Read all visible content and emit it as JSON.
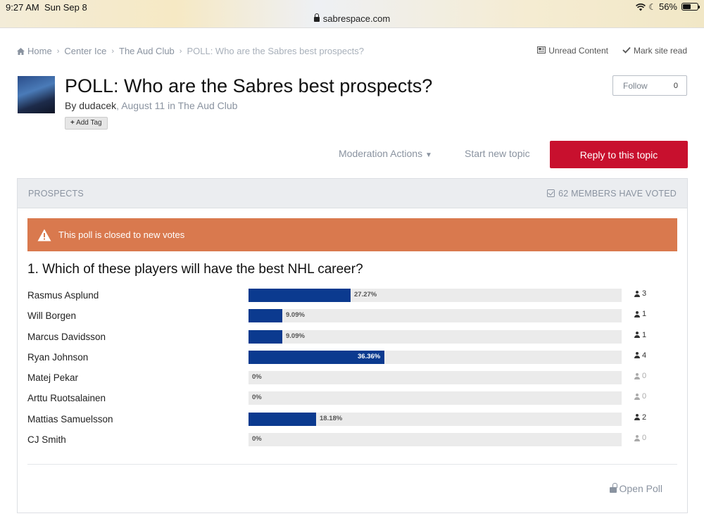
{
  "status_bar": {
    "time": "9:27 AM",
    "date": "Sun Sep 8",
    "battery": "56%",
    "url": "sabrespace.com"
  },
  "breadcrumb": {
    "items": [
      "Home",
      "Center Ice",
      "The Aud Club",
      "POLL: Who are the Sabres best prospects?"
    ]
  },
  "top_links": {
    "unread": "Unread Content",
    "mark_read": "Mark site read"
  },
  "topic": {
    "title": "POLL: Who are the Sabres best prospects?",
    "by_prefix": "By ",
    "author": "dudacek",
    "date_text": "August 11 in The Aud Club",
    "add_tag": "Add Tag"
  },
  "follow": {
    "label": "Follow",
    "count": "0"
  },
  "actions": {
    "moderation": "Moderation Actions",
    "start_topic": "Start new topic",
    "reply": "Reply to this topic"
  },
  "poll": {
    "header": "PROSPECTS",
    "voted": "62 MEMBERS HAVE VOTED",
    "closed_notice": "This poll is closed to new votes",
    "question": "1. Which of these players will have the best NHL career?",
    "open_poll": "Open Poll",
    "options": [
      {
        "label": "Rasmus Asplund",
        "percent": 27.27,
        "percent_text": "27.27%",
        "votes": "3"
      },
      {
        "label": "Will Borgen",
        "percent": 9.09,
        "percent_text": "9.09%",
        "votes": "1"
      },
      {
        "label": "Marcus Davidsson",
        "percent": 9.09,
        "percent_text": "9.09%",
        "votes": "1"
      },
      {
        "label": "Ryan Johnson",
        "percent": 36.36,
        "percent_text": "36.36%",
        "votes": "4"
      },
      {
        "label": "Matej Pekar",
        "percent": 0,
        "percent_text": "0%",
        "votes": "0"
      },
      {
        "label": "Arttu Ruotsalainen",
        "percent": 0,
        "percent_text": "0%",
        "votes": "0"
      },
      {
        "label": "Mattias Samuelsson",
        "percent": 18.18,
        "percent_text": "18.18%",
        "votes": "2"
      },
      {
        "label": "CJ Smith",
        "percent": 0,
        "percent_text": "0%",
        "votes": "0"
      }
    ]
  },
  "colors": {
    "accent_red": "#c8102e",
    "bar_blue": "#0b3a8f",
    "warning_orange": "#d9794e"
  }
}
